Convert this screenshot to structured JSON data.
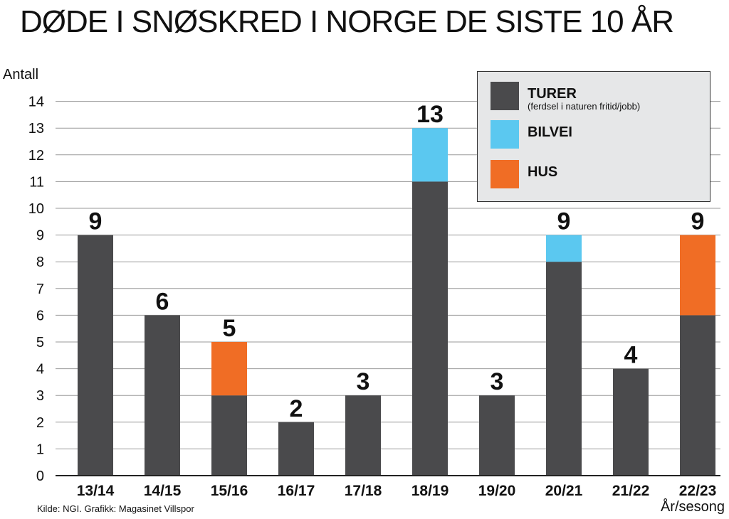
{
  "title": "DØDE I SNØSKRED I NORGE DE SISTE 10 ÅR",
  "source": "Kilde: NGI. Grafikk: Magasinet Villspor",
  "colors": {
    "turer": "#4a4a4c",
    "bilvei": "#5bc8f0",
    "hus": "#f06d25",
    "grid": "#9a9a9a"
  },
  "legend": {
    "turer": "TURER",
    "turer_sub": "(ferdsel i naturen fritid/jobb)",
    "bilvei": "BILVEI",
    "hus": "HUS"
  },
  "chart_data": {
    "type": "bar",
    "stacked": true,
    "title": "DØDE I SNØSKRED I NORGE DE SISTE 10 ÅR",
    "xlabel": "År/sesong",
    "ylabel": "Antall",
    "ylim": [
      0,
      14
    ],
    "yticks": [
      0,
      1,
      2,
      3,
      4,
      5,
      6,
      7,
      8,
      9,
      10,
      11,
      12,
      13,
      14
    ],
    "grid": true,
    "legend_position": "top-right",
    "categories": [
      "13/14",
      "14/15",
      "15/16",
      "16/17",
      "17/18",
      "18/19",
      "19/20",
      "20/21",
      "21/22",
      "22/23"
    ],
    "series": [
      {
        "name": "TURER",
        "key": "turer",
        "values": [
          9,
          6,
          3,
          2,
          3,
          11,
          3,
          8,
          4,
          6
        ]
      },
      {
        "name": "BILVEI",
        "key": "bilvei",
        "values": [
          0,
          0,
          0,
          0,
          0,
          2,
          0,
          1,
          0,
          0
        ]
      },
      {
        "name": "HUS",
        "key": "hus",
        "values": [
          0,
          0,
          2,
          0,
          0,
          0,
          0,
          0,
          0,
          3
        ]
      }
    ],
    "totals": [
      9,
      6,
      5,
      2,
      3,
      13,
      3,
      9,
      4,
      9
    ]
  }
}
